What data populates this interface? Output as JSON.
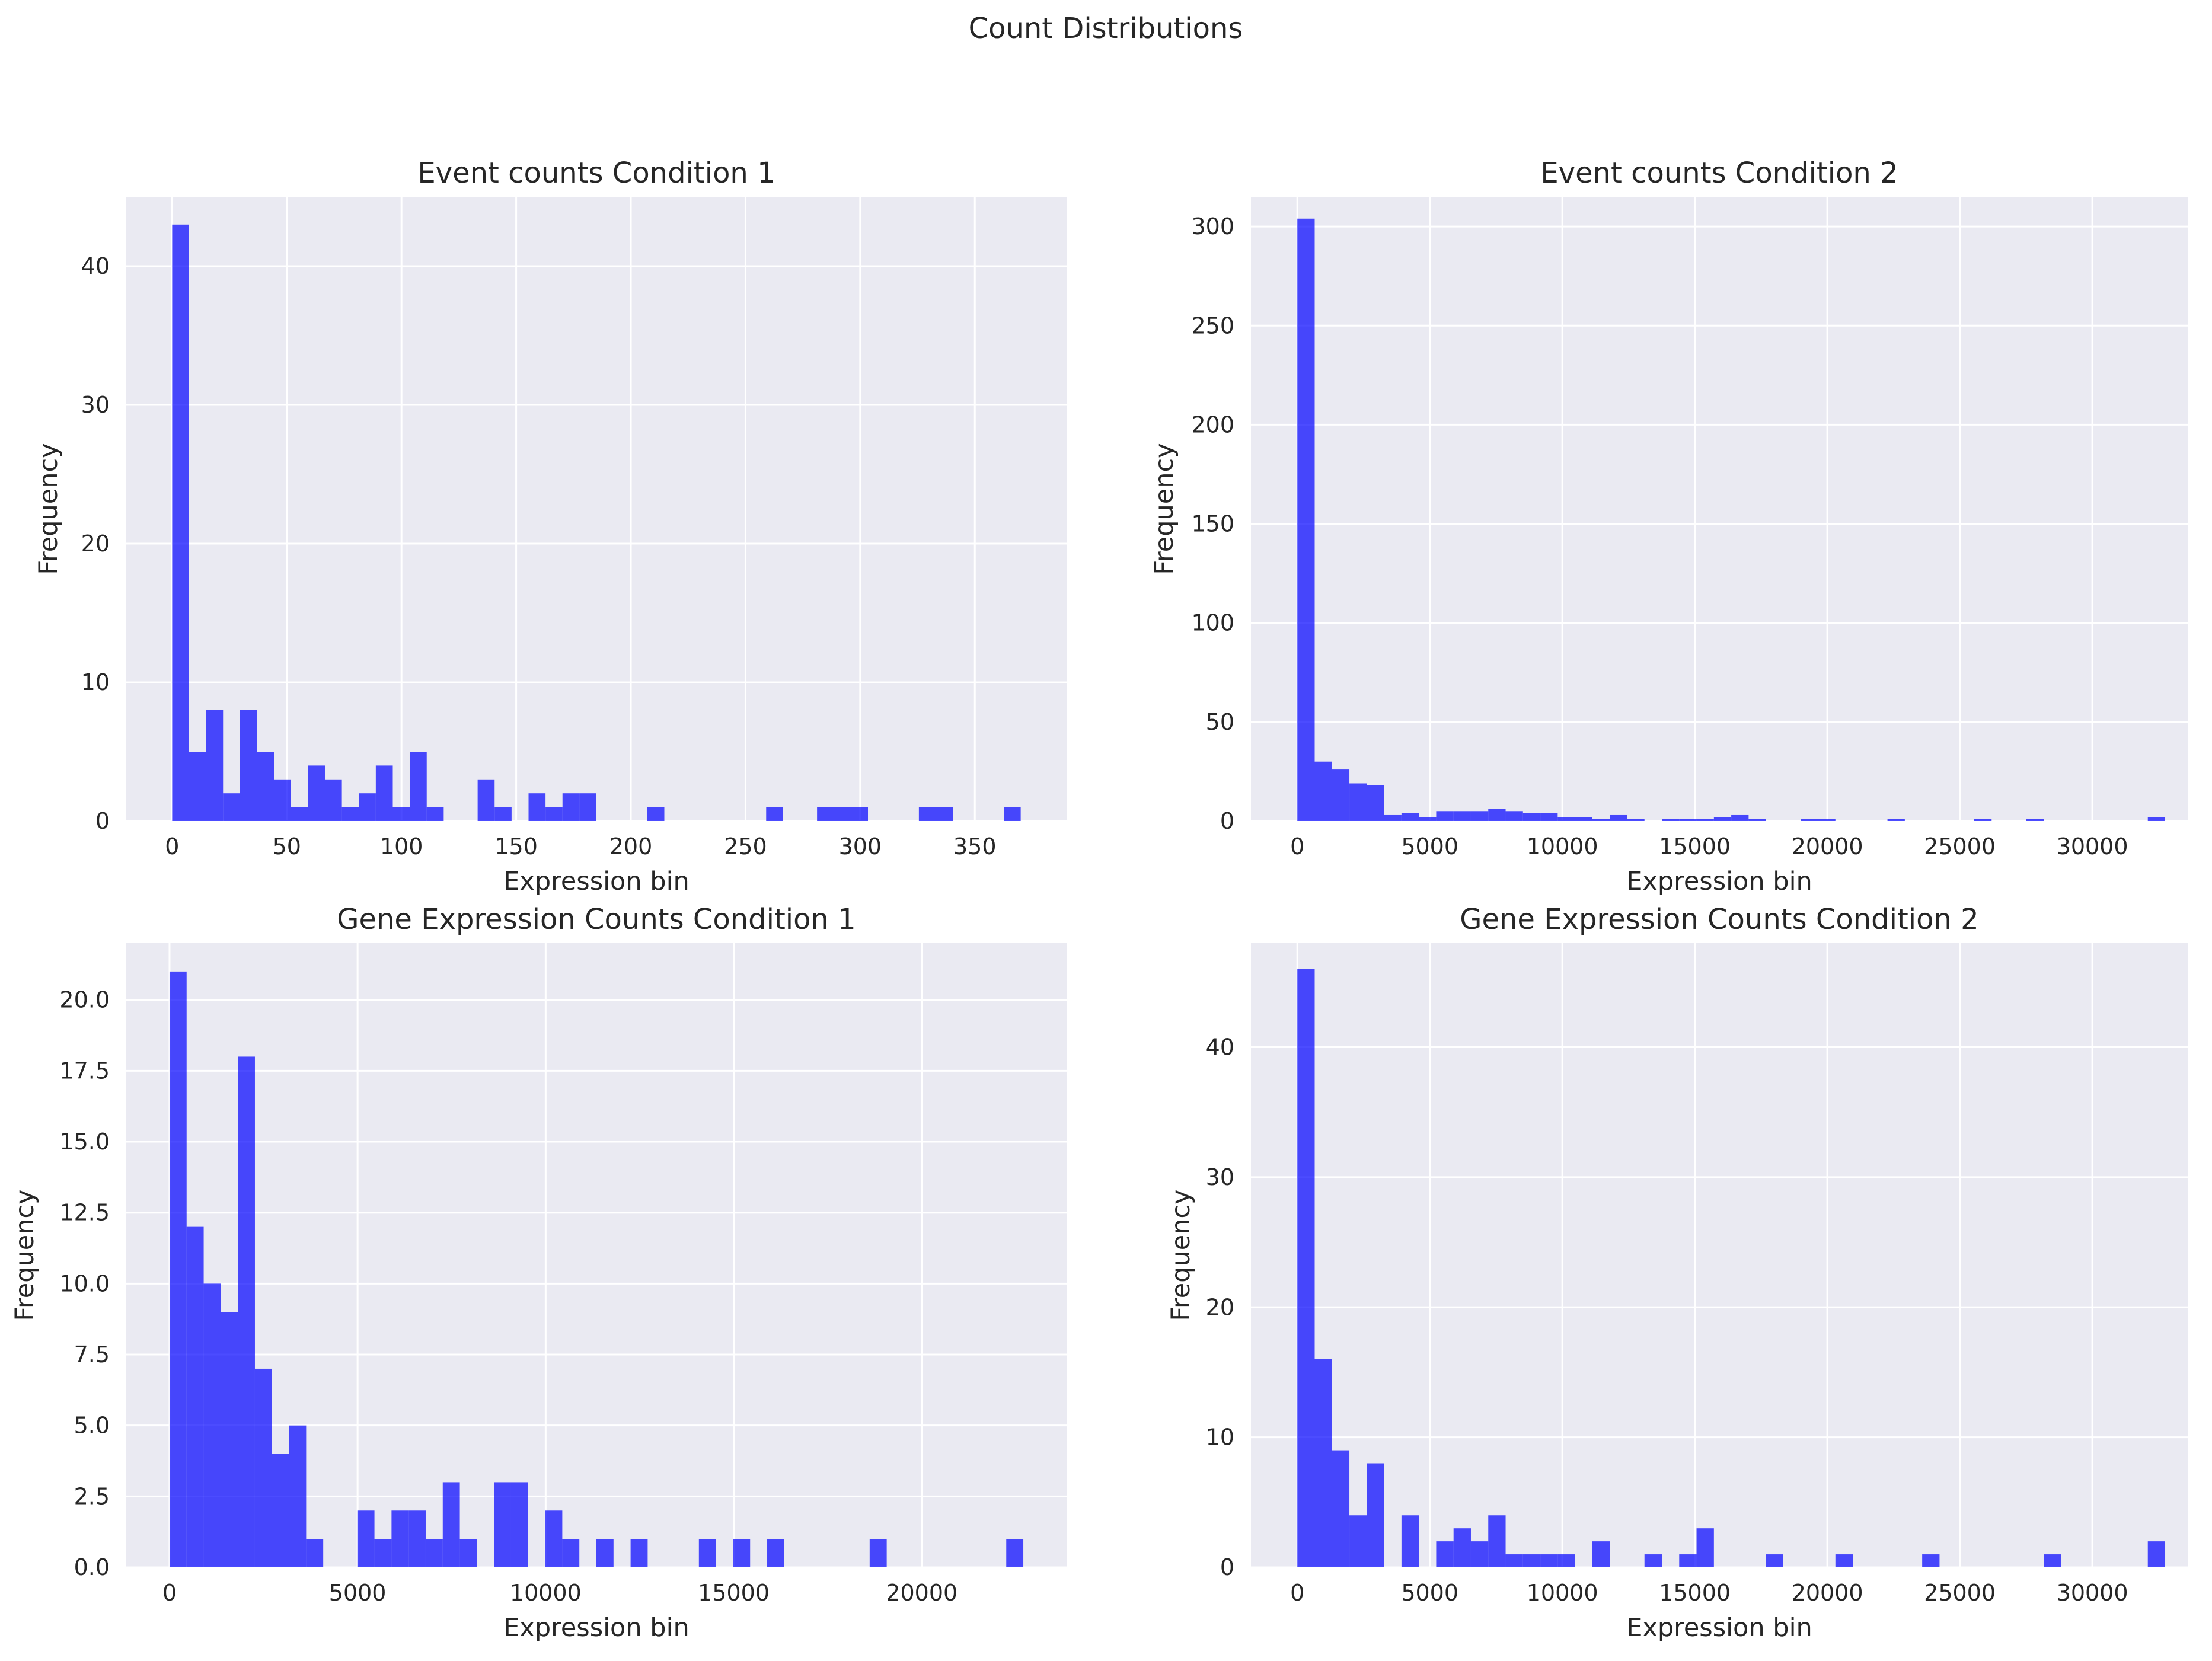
{
  "figure": {
    "title": "Count Distributions"
  },
  "style": {
    "bar_color": "#0000FF",
    "bar_opacity": 0.7,
    "axes_background": "#EAEAF2",
    "grid_color": "#FFFFFF"
  },
  "chart_data": [
    {
      "type": "bar",
      "title": "Event counts Condition 1",
      "xlabel": "Expression bin",
      "ylabel": "Frequency",
      "xlim": [
        -20,
        390
      ],
      "ylim": [
        0,
        45
      ],
      "xticks": [
        0,
        50,
        100,
        150,
        200,
        250,
        300,
        350
      ],
      "yticks": [
        0,
        10,
        20,
        30,
        40
      ],
      "grid": true,
      "bin_start": 0,
      "bin_width": 7.4,
      "values": [
        43,
        5,
        8,
        2,
        8,
        5,
        3,
        1,
        4,
        3,
        1,
        2,
        4,
        1,
        5,
        1,
        0,
        0,
        3,
        1,
        0,
        2,
        1,
        2,
        2,
        0,
        0,
        0,
        1,
        0,
        0,
        0,
        0,
        0,
        0,
        1,
        0,
        0,
        1,
        1,
        1,
        0,
        0,
        0,
        1,
        1,
        0,
        0,
        0,
        1
      ]
    },
    {
      "type": "bar",
      "title": "Event counts Condition 2",
      "xlabel": "Expression bin",
      "ylabel": "Frequency",
      "xlim": [
        -1750,
        33600
      ],
      "ylim": [
        0,
        315
      ],
      "xticks": [
        0,
        5000,
        10000,
        15000,
        20000,
        25000,
        30000
      ],
      "yticks": [
        0,
        50,
        100,
        150,
        200,
        250,
        300
      ],
      "grid": true,
      "bin_start": 0,
      "bin_width": 655,
      "values": [
        304,
        30,
        26,
        19,
        18,
        3,
        4,
        2,
        5,
        5,
        5,
        6,
        5,
        4,
        4,
        2,
        2,
        1,
        3,
        1,
        0,
        1,
        1,
        1,
        2,
        3,
        1,
        0,
        0,
        1,
        1,
        0,
        0,
        0,
        1,
        0,
        0,
        0,
        0,
        1,
        0,
        0,
        1,
        0,
        0,
        0,
        0,
        0,
        0,
        2
      ]
    },
    {
      "type": "bar",
      "title": "Gene Expression Counts Condition 1",
      "xlabel": "Expression bin",
      "ylabel": "Frequency",
      "xlim": [
        -1150,
        23850
      ],
      "ylim": [
        0,
        22
      ],
      "xticks": [
        0,
        5000,
        10000,
        15000,
        20000
      ],
      "yticks": [
        0.0,
        2.5,
        5.0,
        7.5,
        10.0,
        12.5,
        15.0,
        17.5,
        20.0
      ],
      "grid": true,
      "bin_start": 0,
      "bin_width": 454,
      "values": [
        21,
        12,
        10,
        9,
        18,
        7,
        4,
        5,
        1,
        0,
        0,
        2,
        1,
        2,
        2,
        1,
        3,
        1,
        0,
        3,
        3,
        0,
        2,
        1,
        0,
        1,
        0,
        1,
        0,
        0,
        0,
        1,
        0,
        1,
        0,
        1,
        0,
        0,
        0,
        0,
        0,
        1,
        0,
        0,
        0,
        0,
        0,
        0,
        0,
        1
      ]
    },
    {
      "type": "bar",
      "title": "Gene Expression Counts Condition 2",
      "xlabel": "Expression bin",
      "ylabel": "Frequency",
      "xlim": [
        -1750,
        33600
      ],
      "ylim": [
        0,
        48
      ],
      "xticks": [
        0,
        5000,
        10000,
        15000,
        20000,
        25000,
        30000
      ],
      "yticks": [
        0,
        10,
        20,
        30,
        40
      ],
      "grid": true,
      "bin_start": 0,
      "bin_width": 655,
      "values": [
        46,
        16,
        9,
        4,
        8,
        0,
        4,
        0,
        2,
        3,
        2,
        4,
        1,
        1,
        1,
        1,
        0,
        2,
        0,
        0,
        1,
        0,
        1,
        3,
        0,
        0,
        0,
        1,
        0,
        0,
        0,
        1,
        0,
        0,
        0,
        0,
        1,
        0,
        0,
        0,
        0,
        0,
        0,
        1,
        0,
        0,
        0,
        0,
        0,
        2
      ]
    }
  ]
}
